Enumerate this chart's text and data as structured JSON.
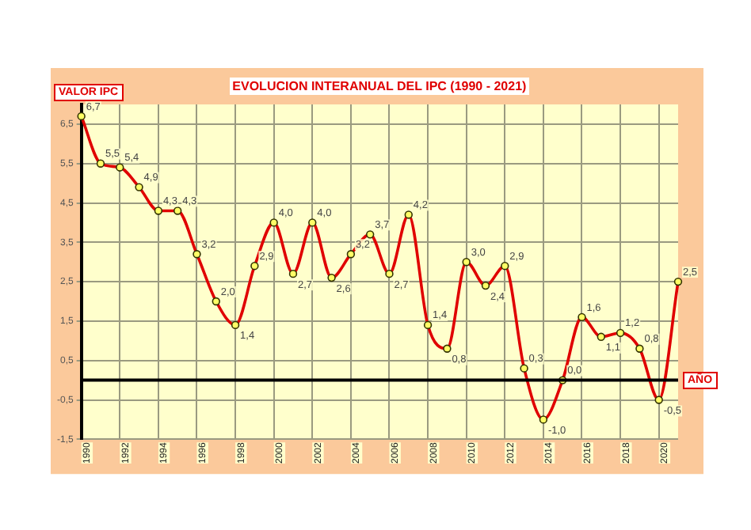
{
  "chart_data": {
    "type": "line",
    "title": "EVOLUCION INTERANUAL DEL IPC (1990 - 2021)",
    "xlabel": "AÑO",
    "ylabel": "VALOR IPC",
    "categories": [
      "1990",
      null,
      "1992",
      null,
      "1994",
      null,
      "1996",
      null,
      "1998",
      null,
      "2000",
      null,
      "2002",
      null,
      "2004",
      null,
      "2006",
      null,
      "2008",
      null,
      "2010",
      null,
      "2012",
      null,
      "2014",
      null,
      "2016",
      null,
      "2018",
      null,
      "2020",
      null
    ],
    "series": [
      {
        "color": "#e00000",
        "values": [
          6.7,
          5.5,
          5.4,
          4.9,
          4.3,
          4.3,
          3.2,
          2.0,
          1.4,
          2.9,
          4.0,
          2.7,
          4.0,
          2.6,
          3.2,
          3.7,
          2.7,
          4.2,
          1.4,
          0.8,
          3.0,
          2.4,
          2.9,
          0.3,
          -1.0,
          0.0,
          1.6,
          1.1,
          1.2,
          0.8,
          -0.5,
          2.5
        ],
        "value_labels": [
          "6,7",
          "5,5",
          "5,4",
          "4,9",
          "4,3",
          "4,3",
          "3,2",
          "2,0",
          "1,4",
          "2,9",
          "4,0",
          "2,7",
          "4,0",
          "2,6",
          "3,2",
          "3,7",
          "2,7",
          "4,2",
          "1,4",
          "0,8",
          "3,0",
          "2,4",
          "2,9",
          "0,3",
          "-1,0",
          "0,0",
          "1,6",
          "1,1",
          "1,2",
          "0,8",
          "-0,5",
          "2,5"
        ]
      }
    ],
    "ylim": [
      -1.5,
      7
    ],
    "yticks": [
      {
        "value": -1.5,
        "label": "-1,5"
      },
      {
        "value": -0.5,
        "label": "-0,5"
      },
      {
        "value": 0.5,
        "label": "0,5"
      },
      {
        "value": 1.5,
        "label": "1,5"
      },
      {
        "value": 2.5,
        "label": "2,5"
      },
      {
        "value": 3.5,
        "label": "3,5"
      },
      {
        "value": 4.5,
        "label": "4,5"
      },
      {
        "value": 5.5,
        "label": "5,5"
      },
      {
        "value": 6.5,
        "label": "6,5"
      }
    ],
    "ref_lines": [
      {
        "axis": "y",
        "value": 0,
        "color": "#000000"
      }
    ],
    "grid": true,
    "legend": false,
    "marker": "circle",
    "line_style": "solid"
  }
}
